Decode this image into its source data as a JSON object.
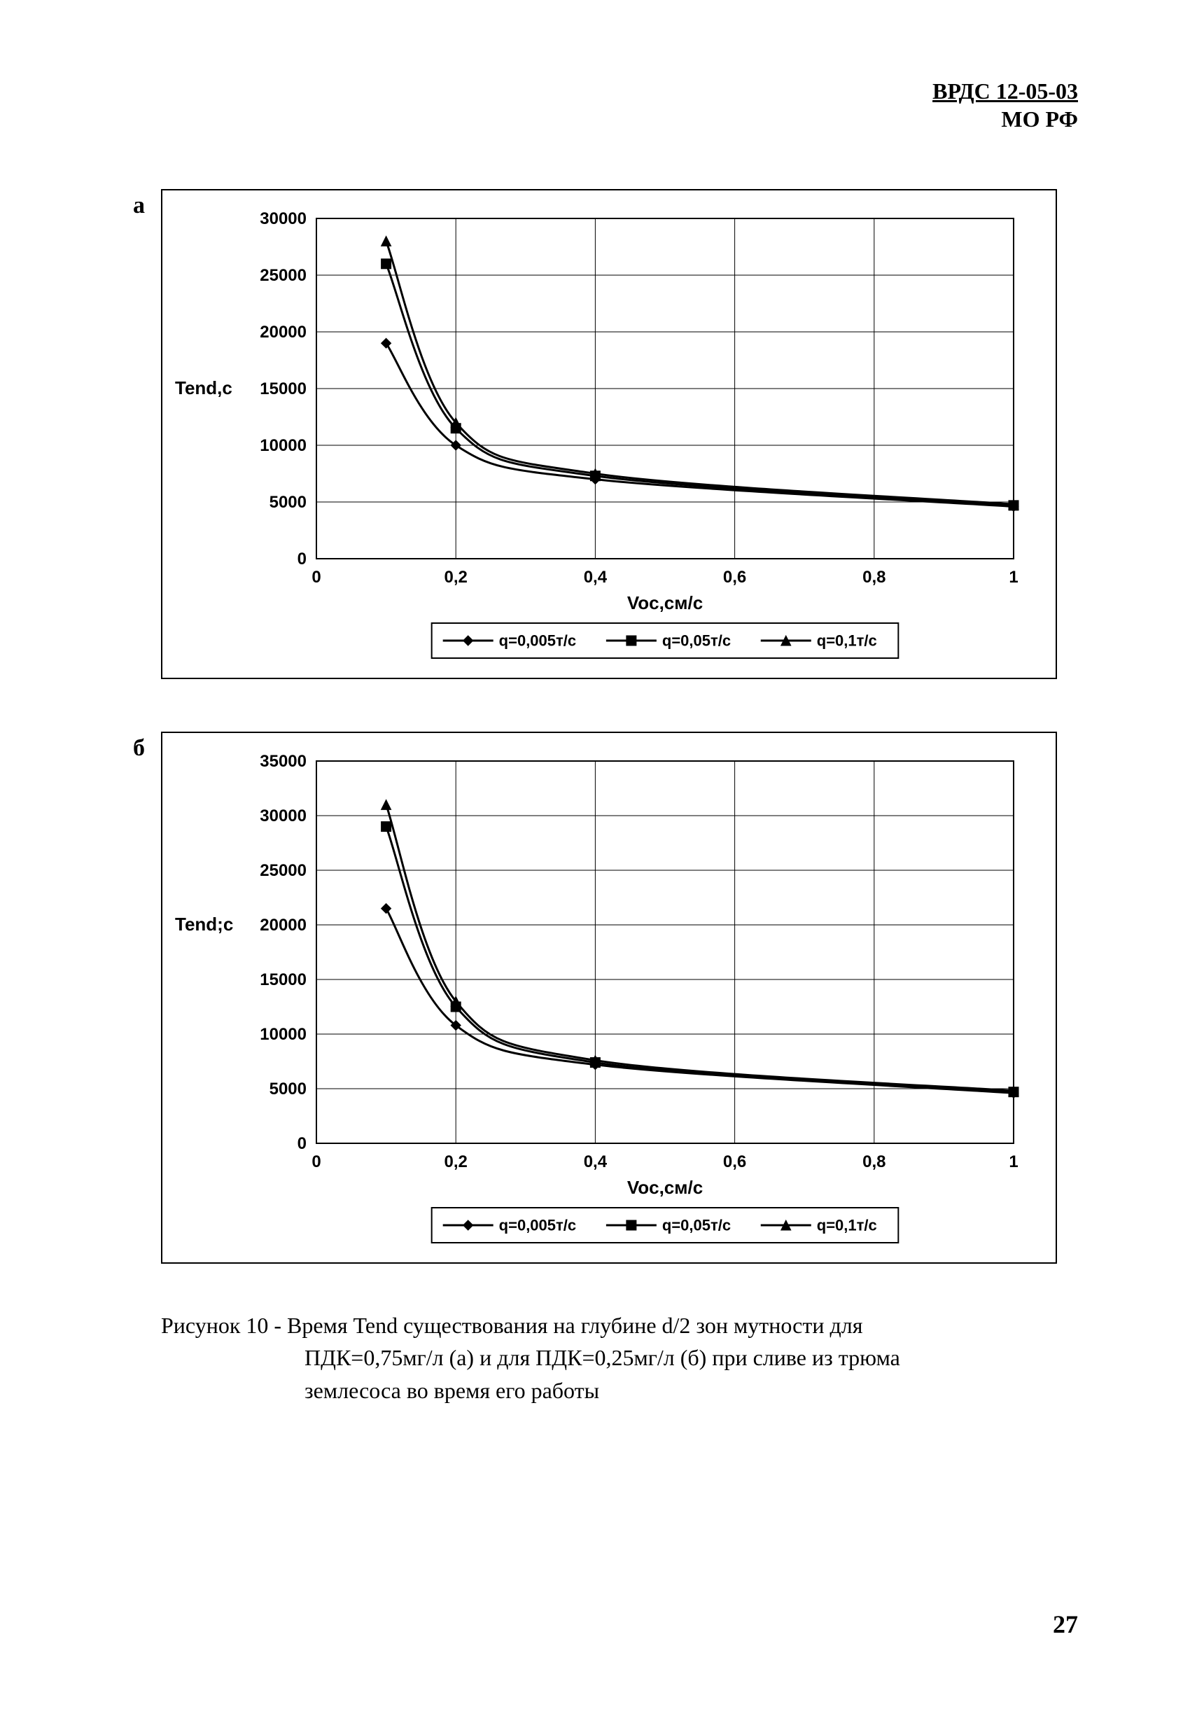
{
  "header": {
    "line1": "ВРДС 12-05-03",
    "line2": "МО РФ"
  },
  "panelA": {
    "label": "а",
    "type": "line",
    "xlabel": "Voc,см/с",
    "ylabel": "Tend,c",
    "xlim": [
      0,
      1
    ],
    "ylim": [
      0,
      30000
    ],
    "xticks": [
      0,
      0.2,
      0.4,
      0.6,
      0.8,
      1
    ],
    "xticklabels": [
      "0",
      "0,2",
      "0,4",
      "0,6",
      "0,8",
      "1"
    ],
    "yticks": [
      0,
      5000,
      10000,
      15000,
      20000,
      25000,
      30000
    ],
    "yticklabels": [
      "0",
      "5000",
      "10000",
      "15000",
      "20000",
      "25000",
      "30000"
    ],
    "grid_color": "#000000",
    "grid_linewidth": 1,
    "background_color": "#ffffff",
    "axis_fontsize": 24,
    "label_fontsize": 26,
    "line_width": 3,
    "marker_size": 7,
    "legend": {
      "items": [
        {
          "marker": "diamond",
          "label": "q=0,005т/с"
        },
        {
          "marker": "square",
          "label": "q=0,05т/с"
        },
        {
          "marker": "triangle",
          "label": "q=0,1т/с"
        }
      ],
      "fontsize": 22,
      "border_color": "#000000"
    },
    "series": [
      {
        "name": "q=0,005т/с",
        "marker": "diamond",
        "color": "#000000",
        "x": [
          0.1,
          0.2,
          0.4,
          1.0
        ],
        "y": [
          19000,
          10000,
          7000,
          4600
        ]
      },
      {
        "name": "q=0,05т/с",
        "marker": "square",
        "color": "#000000",
        "x": [
          0.1,
          0.2,
          0.4,
          1.0
        ],
        "y": [
          26000,
          11500,
          7300,
          4700
        ]
      },
      {
        "name": "q=0,1т/с",
        "marker": "triangle",
        "color": "#000000",
        "x": [
          0.1,
          0.2,
          0.4,
          1.0
        ],
        "y": [
          28000,
          12000,
          7500,
          4800
        ]
      }
    ]
  },
  "panelB": {
    "label": "б",
    "type": "line",
    "xlabel": "Voc,см/с",
    "ylabel": "Tend;c",
    "xlim": [
      0,
      1
    ],
    "ylim": [
      0,
      35000
    ],
    "xticks": [
      0,
      0.2,
      0.4,
      0.6,
      0.8,
      1
    ],
    "xticklabels": [
      "0",
      "0,2",
      "0,4",
      "0,6",
      "0,8",
      "1"
    ],
    "yticks": [
      0,
      5000,
      10000,
      15000,
      20000,
      25000,
      30000,
      35000
    ],
    "yticklabels": [
      "0",
      "5000",
      "10000",
      "15000",
      "20000",
      "25000",
      "30000",
      "35000"
    ],
    "grid_color": "#000000",
    "grid_linewidth": 1,
    "background_color": "#ffffff",
    "axis_fontsize": 24,
    "label_fontsize": 26,
    "line_width": 3,
    "marker_size": 7,
    "legend": {
      "items": [
        {
          "marker": "diamond",
          "label": "q=0,005т/с"
        },
        {
          "marker": "square",
          "label": "q=0,05т/с"
        },
        {
          "marker": "triangle",
          "label": "q=0,1т/с"
        }
      ],
      "fontsize": 22,
      "border_color": "#000000"
    },
    "series": [
      {
        "name": "q=0,005т/с",
        "marker": "diamond",
        "color": "#000000",
        "x": [
          0.1,
          0.2,
          0.4,
          1.0
        ],
        "y": [
          21500,
          10800,
          7200,
          4600
        ]
      },
      {
        "name": "q=0,05т/с",
        "marker": "square",
        "color": "#000000",
        "x": [
          0.1,
          0.2,
          0.4,
          1.0
        ],
        "y": [
          29000,
          12500,
          7400,
          4700
        ]
      },
      {
        "name": "q=0,1т/с",
        "marker": "triangle",
        "color": "#000000",
        "x": [
          0.1,
          0.2,
          0.4,
          1.0
        ],
        "y": [
          31000,
          13000,
          7600,
          4800
        ]
      }
    ]
  },
  "caption": {
    "prefix": "Рисунок 10 - ",
    "body_line1": "Время Tend существования на глубине d/2 зон мутности для",
    "body_line2": "ПДК=0,75мг/л (а) и для ПДК=0,25мг/л (б) при сливе из трюма",
    "body_line3": "землесоса во время его работы"
  },
  "page_number": "27"
}
